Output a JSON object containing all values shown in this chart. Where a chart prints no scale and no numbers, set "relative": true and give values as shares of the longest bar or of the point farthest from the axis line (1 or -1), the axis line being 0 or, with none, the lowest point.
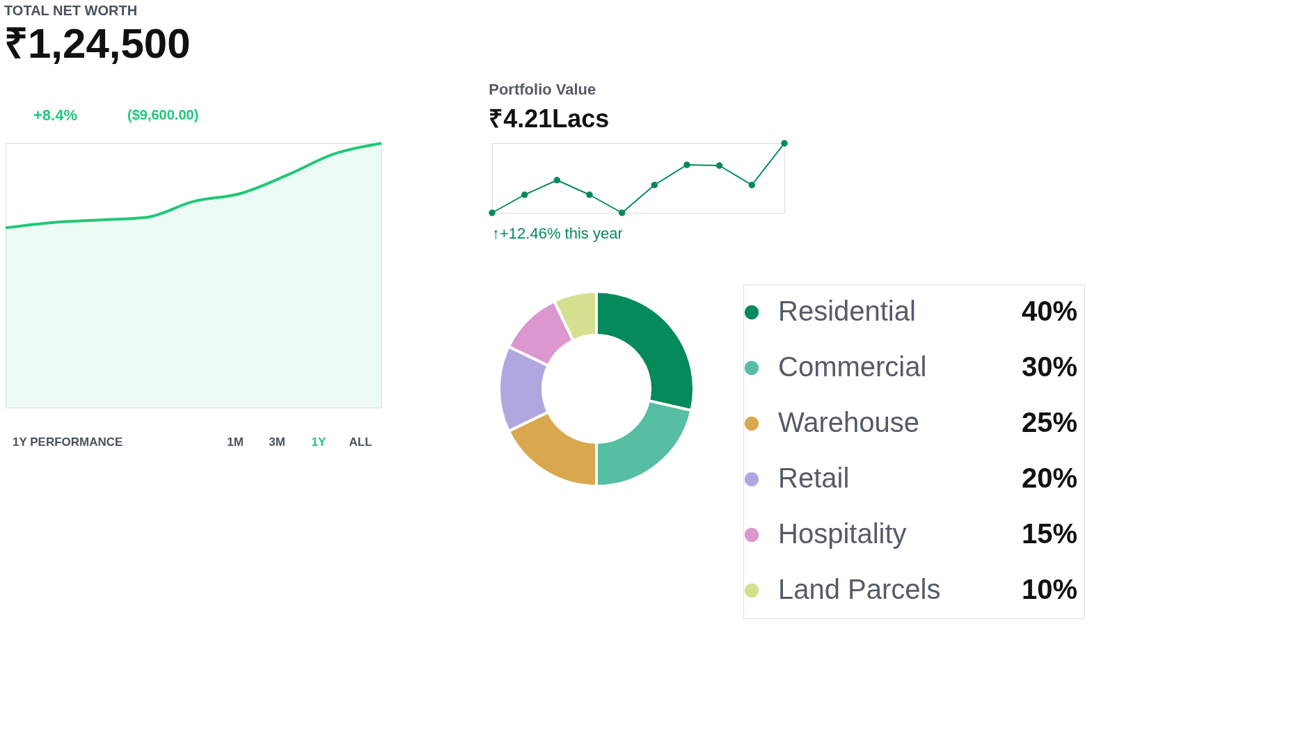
{
  "chart_data": [
    {
      "type": "area",
      "title": "TOTAL NET WORTH",
      "subtitle": "₹1,24,500",
      "relative": true,
      "categories": [
        null,
        null,
        null,
        null,
        null,
        null,
        null,
        null,
        null
      ],
      "series": [
        {
          "color": "#1fc87a",
          "values": [
            0.68,
            0.7,
            0.71,
            0.72,
            0.78,
            0.81,
            0.88,
            0.96,
            1.0
          ]
        }
      ],
      "annotations": [
        "+8.4%",
        "($9,600.00)",
        "1Y PERFORMANCE",
        "1M",
        "3M",
        "1Y",
        "ALL"
      ]
    },
    {
      "type": "line",
      "title": "Portfolio Value",
      "subtitle": "₹4.21Lacs",
      "relative": true,
      "marker": "circle",
      "categories": [
        null,
        null,
        null,
        null,
        null,
        null,
        null,
        null,
        null,
        null
      ],
      "series": [
        {
          "color": "#058a5a",
          "values": [
            0,
            0.26,
            0.47,
            0.26,
            0,
            0.4,
            0.69,
            0.68,
            0.4,
            1.0
          ]
        }
      ],
      "annotations": [
        "↑+12.46% this year"
      ]
    },
    {
      "type": "donut",
      "legend": "right",
      "categories": [
        "Residential",
        "Commercial",
        "Warehouse",
        "Retail",
        "Hospitality",
        "Land Parcels"
      ],
      "values": [
        40,
        30,
        25,
        20,
        15,
        10
      ],
      "colors": [
        "#058a5a",
        "#56bea3",
        "#d9a84e",
        "#b1a7e0",
        "#dc97cf",
        "#d4e08f"
      ],
      "value_labels": [
        "40%",
        "30%",
        "25%",
        "20%",
        "15%",
        "10%"
      ]
    }
  ]
}
